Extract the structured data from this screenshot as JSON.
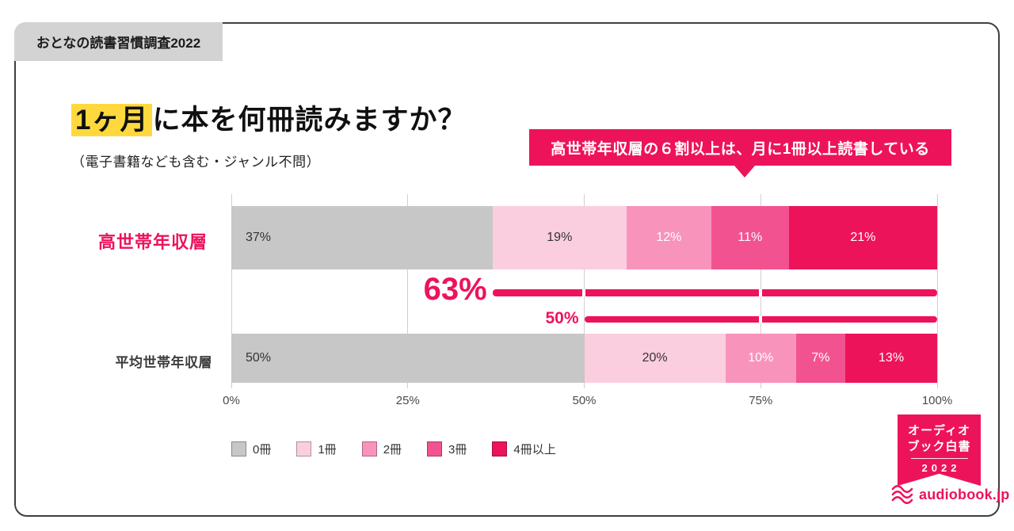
{
  "tab": {
    "label": "おとなの読書習慣調査2022"
  },
  "title": {
    "highlight": "1ヶ月",
    "rest": "に本を何冊読みますか？",
    "subtitle": "（電子書籍なども含む・ジャンル不問）"
  },
  "callout": {
    "text": "高世帯年収層の６割以上は、月に1冊以上読書している"
  },
  "colors": {
    "accent": "#ED135B",
    "highlight_yellow": "#FFD83E",
    "tab_bg": "#D3D3D3",
    "grid": "#CFCFCF",
    "bar0": "#C7C7C7",
    "bar1": "#FBCEDF",
    "bar2": "#F893BC",
    "bar3": "#F25390",
    "bar4": "#ED135B"
  },
  "chart_data": {
    "type": "bar",
    "orientation": "horizontal-stacked",
    "title": "1ヶ月に本を何冊読みますか？",
    "categories": [
      "高世帯年収層",
      "平均世帯年収層"
    ],
    "legend": [
      "0冊",
      "1冊",
      "2冊",
      "3冊",
      "4冊以上"
    ],
    "series": [
      {
        "name": "0冊",
        "values": [
          37,
          50
        ]
      },
      {
        "name": "1冊",
        "values": [
          19,
          20
        ]
      },
      {
        "name": "2冊",
        "values": [
          12,
          10
        ]
      },
      {
        "name": "3冊",
        "values": [
          11,
          7
        ]
      },
      {
        "name": "4冊以上",
        "values": [
          21,
          13
        ]
      }
    ],
    "annotations": [
      {
        "label": "63%",
        "from": 37,
        "to": 100,
        "row": "高世帯年収層",
        "meaning": "月に1冊以上読む割合"
      },
      {
        "label": "50%",
        "from": 50,
        "to": 100,
        "row": "平均世帯年収層",
        "meaning": "月に1冊以上読む割合"
      }
    ],
    "x_ticks": [
      "0%",
      "25%",
      "50%",
      "75%",
      "100%"
    ],
    "xlim": [
      0,
      100
    ],
    "grid": true,
    "legend_position": "bottom"
  },
  "logo": {
    "ribbon_lines": [
      "オーディオ",
      "ブック白書"
    ],
    "ribbon_year": "2022",
    "wordmark": "audiobook.jp"
  }
}
